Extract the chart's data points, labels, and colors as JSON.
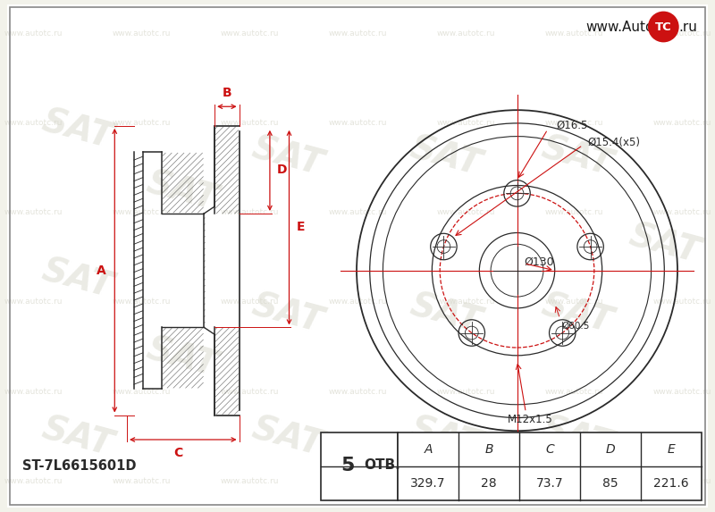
{
  "bg_color": "#f2f2ea",
  "line_color": "#2a2a2a",
  "red_color": "#cc1111",
  "part_number": "ST-7L6615601D",
  "holes_label": "ОТВ.",
  "table_headers": [
    "A",
    "B",
    "C",
    "D",
    "E"
  ],
  "table_values": [
    "329.7",
    "28",
    "73.7",
    "85",
    "221.6"
  ],
  "dim_d1": "Ø16.5",
  "dim_d2": "Ø15.4(x5)",
  "dim_d3": "Ø130",
  "dim_d4": "Ø60.5",
  "dim_bolt": "M12x1.5",
  "watermark_color": "#d8d8cc",
  "url_text": "www.Auto",
  "url_tc": "TC",
  "url_ru": ".ru"
}
